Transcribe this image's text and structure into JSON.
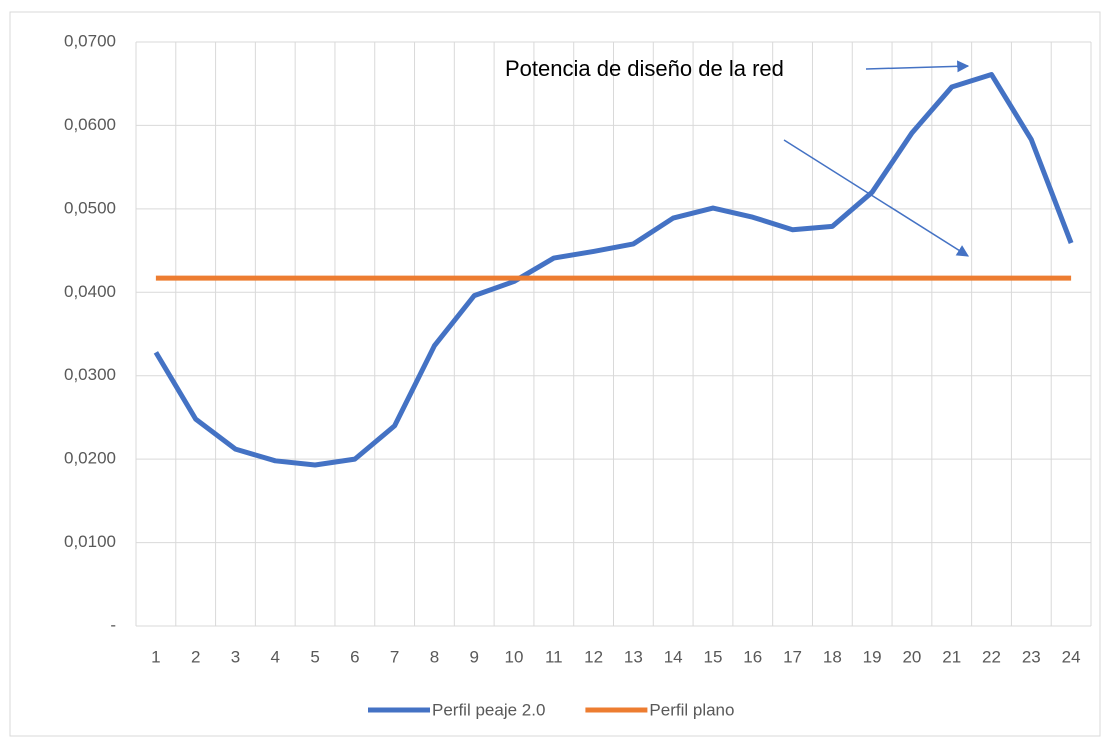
{
  "chart_data": {
    "type": "line",
    "annotations": [
      "Potencia de diseño de la red"
    ],
    "categories": [
      1,
      2,
      3,
      4,
      5,
      6,
      7,
      8,
      9,
      10,
      11,
      12,
      13,
      14,
      15,
      16,
      17,
      18,
      19,
      20,
      21,
      22,
      23,
      24
    ],
    "series": [
      {
        "name": "Perfil peaje 2.0",
        "color": "#4472c4",
        "values": [
          0.0328,
          0.0248,
          0.0212,
          0.0198,
          0.0193,
          0.02,
          0.024,
          0.0336,
          0.0396,
          0.0413,
          0.0441,
          0.0449,
          0.0458,
          0.0489,
          0.0501,
          0.049,
          0.0475,
          0.0479,
          0.052,
          0.0591,
          0.0646,
          0.0661,
          0.0583,
          0.0459
        ]
      },
      {
        "name": "Perfil plano",
        "color": "#ed7d31",
        "values": [
          0.0417,
          0.0417,
          0.0417,
          0.0417,
          0.0417,
          0.0417,
          0.0417,
          0.0417,
          0.0417,
          0.0417,
          0.0417,
          0.0417,
          0.0417,
          0.0417,
          0.0417,
          0.0417,
          0.0417,
          0.0417,
          0.0417,
          0.0417,
          0.0417,
          0.0417,
          0.0417,
          0.0417
        ]
      }
    ],
    "ylim": [
      0,
      0.07
    ],
    "yticks": [
      {
        "value": 0,
        "label": "-"
      },
      {
        "value": 0.01,
        "label": "0,0100"
      },
      {
        "value": 0.02,
        "label": "0,0200"
      },
      {
        "value": 0.03,
        "label": "0,0300"
      },
      {
        "value": 0.04,
        "label": "0,0400"
      },
      {
        "value": 0.05,
        "label": "0,0500"
      },
      {
        "value": 0.06,
        "label": "0,0600"
      },
      {
        "value": 0.07,
        "label": "0,0700"
      }
    ],
    "grid": true,
    "legend": "bottom"
  }
}
